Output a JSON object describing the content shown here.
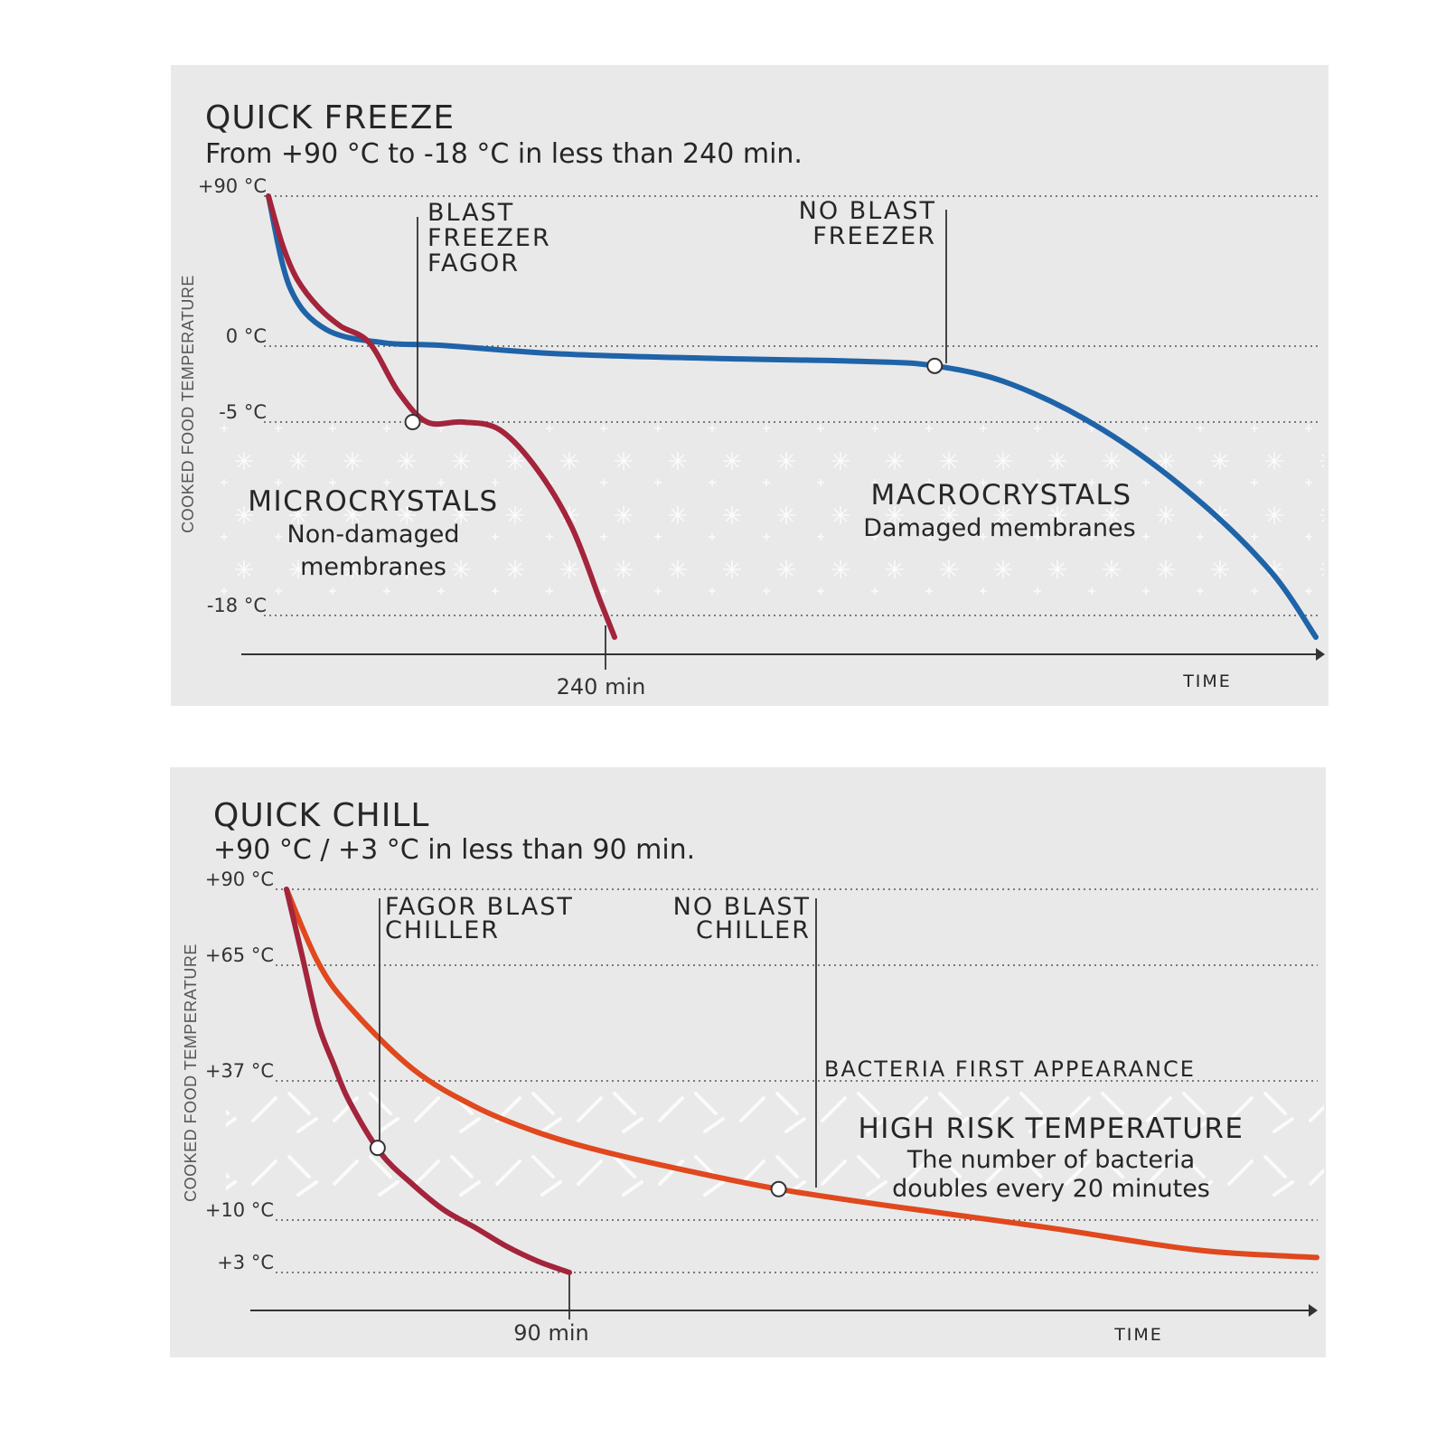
{
  "chart_data": [
    {
      "type": "line",
      "title": "QUICK FREEZE",
      "subtitle": "From +90 °C to -18 °C in less than 240 min.",
      "ylabel": "COOKED FOOD TEMPERATURE",
      "xlabel": "TIME",
      "y_ticks": [
        {
          "value": 90,
          "label": "+90 °C"
        },
        {
          "value": 0,
          "label": "0 °C"
        },
        {
          "value": -5,
          "label": "-5 °C"
        },
        {
          "value": -18,
          "label": "-18 °C"
        }
      ],
      "x_ticks": [
        {
          "value": 240,
          "label": "240 min"
        }
      ],
      "xlim": [
        0,
        700
      ],
      "grid": true,
      "series": [
        {
          "name": "BLAST FREEZER FAGOR",
          "color": "#a3243b",
          "x": [
            0,
            10,
            20,
            35,
            50,
            70,
            90,
            110,
            135,
            160,
            185,
            210,
            230,
            240
          ],
          "y": [
            90,
            60,
            40,
            23,
            12,
            2,
            -3,
            -5,
            -5,
            -5.5,
            -8,
            -12,
            -17,
            -19
          ]
        },
        {
          "name": "NO BLAST FREEZER",
          "color": "#1f63a8",
          "x": [
            0,
            15,
            40,
            80,
            120,
            200,
            300,
            400,
            450,
            500,
            560,
            620,
            670,
            700
          ],
          "y": [
            90,
            35,
            10,
            2,
            0.5,
            -0.5,
            -0.8,
            -1,
            -1.3,
            -2.5,
            -5.5,
            -10,
            -15,
            -19
          ]
        }
      ],
      "markers": [
        {
          "series": "BLAST FREEZER FAGOR",
          "x": 100,
          "y": -5
        },
        {
          "series": "NO BLAST FREEZER",
          "x": 450,
          "y": -1.3
        }
      ],
      "annotations": [
        {
          "text": [
            "BLAST",
            "FREEZER",
            "FAGOR"
          ]
        },
        {
          "text": [
            "NO BLAST",
            "FREEZER"
          ]
        },
        {
          "text": [
            "MICROCRYSTALS",
            "Non-damaged",
            "membranes"
          ]
        },
        {
          "text": [
            "MACROCRYSTALS",
            "Damaged membranes"
          ]
        }
      ]
    },
    {
      "type": "line",
      "title": "QUICK CHILL",
      "subtitle": "+90 °C / +3 °C in less than 90 min.",
      "ylabel": "COOKED FOOD TEMPERATURE",
      "xlabel": "TIME",
      "y_ticks": [
        {
          "value": 90,
          "label": "+90 °C"
        },
        {
          "value": 65,
          "label": "+65 °C"
        },
        {
          "value": 37,
          "label": "+37 °C"
        },
        {
          "value": 10,
          "label": "+10 °C"
        },
        {
          "value": 3,
          "label": "+3 °C"
        }
      ],
      "x_ticks": [
        {
          "value": 90,
          "label": "90 min"
        }
      ],
      "xlim": [
        0,
        340
      ],
      "grid": true,
      "series": [
        {
          "name": "FAGOR BLAST CHILLER",
          "color": "#a3243b",
          "x": [
            0,
            5,
            10,
            15,
            20,
            30,
            40,
            50,
            60,
            70,
            80,
            90
          ],
          "y": [
            90,
            68,
            51,
            41,
            33,
            23,
            17,
            12,
            9,
            6.5,
            4.5,
            3
          ]
        },
        {
          "name": "NO BLAST CHILLER",
          "color": "#e0481d",
          "x": [
            0,
            10,
            20,
            40,
            60,
            80,
            100,
            130,
            160,
            200,
            250,
            300,
            340
          ],
          "y": [
            90,
            66,
            55,
            40,
            32,
            27,
            23.5,
            19.5,
            16,
            12.5,
            9,
            6,
            5
          ]
        }
      ],
      "markers": [
        {
          "series": "FAGOR BLAST CHILLER",
          "x": 29,
          "y": 24
        },
        {
          "series": "NO BLAST CHILLER",
          "x": 160,
          "y": 16
        }
      ],
      "annotations": [
        {
          "text": [
            "FAGOR BLAST",
            "CHILLER"
          ]
        },
        {
          "text": [
            "NO BLAST",
            "CHILLER"
          ]
        },
        {
          "text": [
            "BACTERIA FIRST APPEARANCE"
          ]
        },
        {
          "text": [
            "HIGH RISK TEMPERATURE",
            "The number of bacteria",
            "doubles every 20 minutes"
          ]
        }
      ]
    }
  ]
}
